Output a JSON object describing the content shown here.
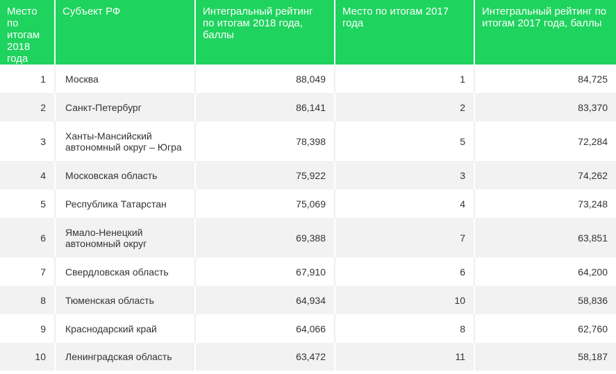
{
  "headers": [
    "Место по итогам 2018 года",
    "Субъект РФ",
    "Интегральный рейтинг по итогам 2018 года, баллы",
    "Место по итогам 2017 года",
    "Интегральный рейтинг по итогам 2017 года, баллы"
  ],
  "rows": [
    {
      "place2018": "1",
      "region": "Москва",
      "score2018": "88,049",
      "place2017": "1",
      "score2017": "84,725"
    },
    {
      "place2018": "2",
      "region": "Санкт-Петербург",
      "score2018": "86,141",
      "place2017": "2",
      "score2017": "83,370"
    },
    {
      "place2018": "3",
      "region": "Ханты-Мансийский автономный округ – Югра",
      "score2018": "78,398",
      "place2017": "5",
      "score2017": "72,284"
    },
    {
      "place2018": "4",
      "region": "Московская область",
      "score2018": "75,922",
      "place2017": "3",
      "score2017": "74,262"
    },
    {
      "place2018": "5",
      "region": "Республика Татарстан",
      "score2018": "75,069",
      "place2017": "4",
      "score2017": "73,248"
    },
    {
      "place2018": "6",
      "region": "Ямало-Ненецкий автономный округ",
      "score2018": "69,388",
      "place2017": "7",
      "score2017": "63,851"
    },
    {
      "place2018": "7",
      "region": "Свердловская область",
      "score2018": "67,910",
      "place2017": "6",
      "score2017": "64,200"
    },
    {
      "place2018": "8",
      "region": "Тюменская область",
      "score2018": "64,934",
      "place2017": "10",
      "score2017": "58,836"
    },
    {
      "place2018": "9",
      "region": "Краснодарский край",
      "score2018": "64,066",
      "place2017": "8",
      "score2017": "62,760"
    },
    {
      "place2018": "10",
      "region": "Ленинградская область",
      "score2018": "63,472",
      "place2017": "11",
      "score2017": "58,187"
    }
  ],
  "colors": {
    "header_bg": "#1ed35e",
    "header_text": "#ffffff",
    "row_alt_bg": "#f2f2f2",
    "text": "#333333"
  }
}
